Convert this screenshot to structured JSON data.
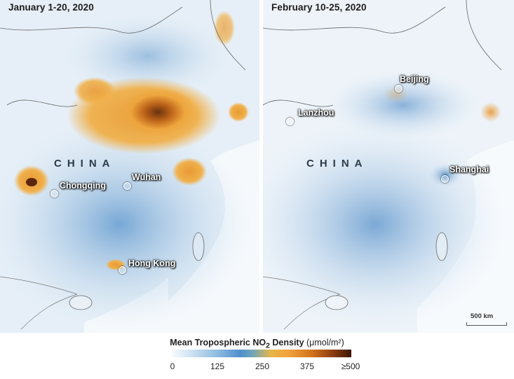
{
  "panels": {
    "left": {
      "period": "January 1-20, 2020",
      "country_label": "CHINA",
      "cities": [
        "Chongqing",
        "Wuhan",
        "Hong Kong"
      ]
    },
    "right": {
      "period": "February 10-25, 2020",
      "country_label": "CHINA",
      "cities": [
        "Beijing",
        "Lanzhou",
        "Shanghai"
      ],
      "scale_bar": "500 km"
    }
  },
  "legend": {
    "title_prefix": "Mean Tropospheric NO",
    "title_sub": "2",
    "title_mid": " Density ",
    "title_units": "(μmol/m²)",
    "ticks": [
      "0",
      "125",
      "250",
      "375",
      "≥500"
    ],
    "colors": {
      "low": "#f7fbff",
      "mid_blue": "#4f8fcf",
      "mid_orange": "#f1a23a",
      "high": "#3a1704"
    }
  }
}
